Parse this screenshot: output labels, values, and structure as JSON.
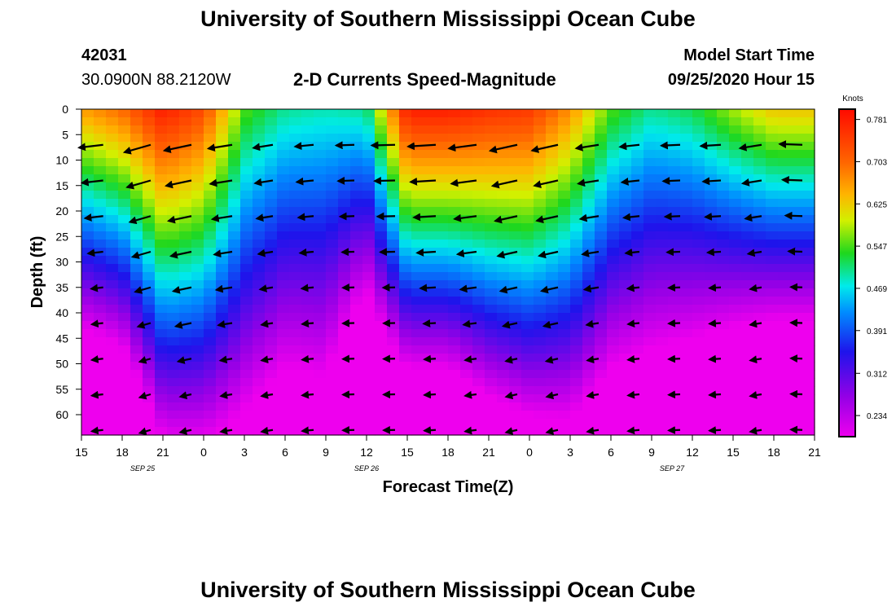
{
  "header": {
    "title": "University of Southern Mississippi Ocean Cube",
    "station_id": "42031",
    "coordinates": "30.0900N 88.2120W",
    "plot_title": "2-D Currents Speed-Magnitude",
    "model_start_label": "Model Start Time",
    "model_start_value": "09/25/2020 Hour 15"
  },
  "footer": {
    "title": "University of Southern Mississippi Ocean Cube"
  },
  "chart_data": {
    "type": "heatmap",
    "title": "2-D Currents Speed-Magnitude",
    "xlabel": "Forecast Time(Z)",
    "ylabel": "Depth (ft)",
    "xlim": [
      0,
      54
    ],
    "ylim": [
      0,
      64
    ],
    "x_tick_labels": [
      "15",
      "18",
      "21",
      "0",
      "3",
      "6",
      "9",
      "12",
      "15",
      "18",
      "21",
      "0",
      "3",
      "6",
      "9",
      "12",
      "15",
      "18",
      "21"
    ],
    "x_ticks_hours": [
      0,
      3,
      6,
      9,
      12,
      15,
      18,
      21,
      24,
      27,
      30,
      33,
      36,
      39,
      42,
      45,
      48,
      51,
      54
    ],
    "day_labels": [
      {
        "text": "SEP 25",
        "hour": 4.5
      },
      {
        "text": "SEP 26",
        "hour": 21
      },
      {
        "text": "SEP 27",
        "hour": 43.5
      }
    ],
    "y_ticks": [
      0,
      5,
      10,
      15,
      20,
      25,
      30,
      35,
      40,
      45,
      50,
      55,
      60
    ],
    "colorbar": {
      "label": "Knots",
      "range": [
        0.195,
        0.8
      ],
      "ticks": [
        0.781,
        0.703,
        0.625,
        0.547,
        0.469,
        0.391,
        0.312,
        0.234
      ]
    },
    "surface_speed_by_hour": {
      "hours": [
        0,
        3,
        6,
        9,
        12,
        15,
        18,
        21,
        24,
        27,
        30,
        33,
        36,
        39,
        42,
        45,
        48,
        51,
        54
      ],
      "values": [
        0.66,
        0.7,
        0.78,
        0.73,
        0.55,
        0.5,
        0.49,
        0.5,
        0.78,
        0.78,
        0.76,
        0.75,
        0.67,
        0.55,
        0.5,
        0.52,
        0.58,
        0.63,
        0.63
      ]
    },
    "speed_gradient_by_hour": {
      "hours": [
        0,
        3,
        6,
        9,
        12,
        15,
        18,
        21,
        24,
        27,
        30,
        33,
        36,
        39,
        42,
        45,
        48,
        51,
        54
      ],
      "values": [
        0.0108,
        0.0108,
        0.009,
        0.0082,
        0.006,
        0.006,
        0.0056,
        0.0085,
        0.0115,
        0.0115,
        0.01,
        0.0092,
        0.0078,
        0.007,
        0.0065,
        0.0072,
        0.009,
        0.0105,
        0.0105
      ]
    },
    "vector_depths_ft": [
      7,
      14,
      21,
      28,
      35,
      42,
      49,
      56,
      63
    ],
    "vector_hours": [
      1,
      4.5,
      7.5,
      10.5,
      13.5,
      16.5,
      19.5,
      22.5,
      25.5,
      28.5,
      31.5,
      34.5,
      37.5,
      40.5,
      43.5,
      46.5,
      49.5,
      52.5
    ],
    "vector_direction_deg_by_hour": {
      "hours": [
        0,
        3,
        6,
        9,
        12,
        15,
        18,
        21,
        24,
        27,
        30,
        33,
        36,
        39,
        42,
        45,
        48,
        51,
        54
      ],
      "values": [
        182,
        196,
        196,
        188,
        190,
        188,
        183,
        181,
        182,
        185,
        190,
        195,
        190,
        188,
        184,
        181,
        186,
        192,
        164
      ]
    },
    "arrow_length_knots_scale": 0.55
  }
}
